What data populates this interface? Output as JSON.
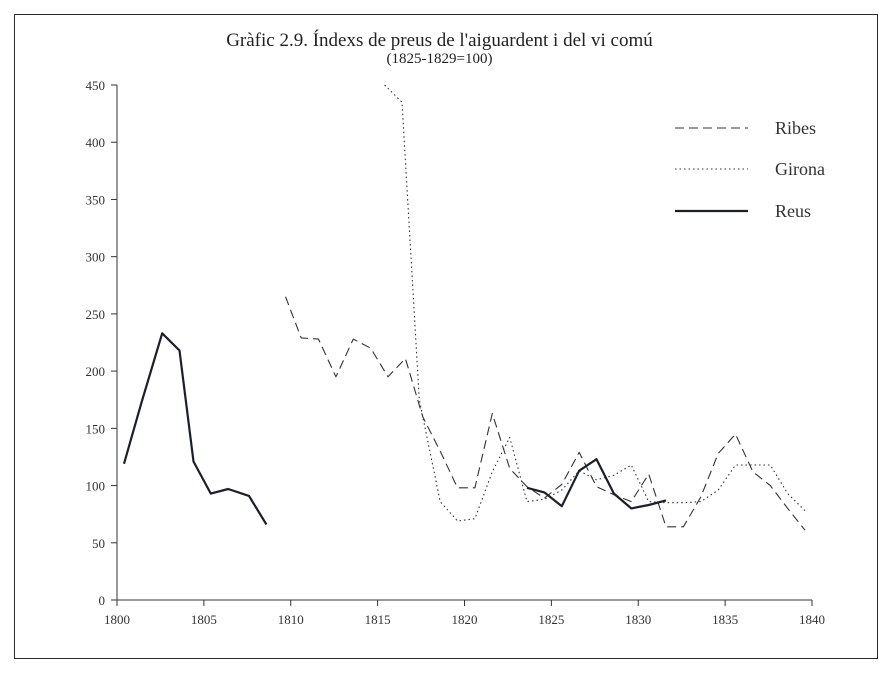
{
  "chart_data": {
    "type": "line",
    "title": "Gràfic 2.9. Índexs de preus de l'aiguardent i del vi comú",
    "subtitle": "(1825-1829=100)",
    "xlabel": "",
    "ylabel": "",
    "xlim": [
      1800,
      1840
    ],
    "ylim": [
      0,
      450
    ],
    "xticks": [
      1800,
      1805,
      1810,
      1815,
      1820,
      1825,
      1830,
      1835,
      1840
    ],
    "yticks": [
      0,
      50,
      100,
      150,
      200,
      250,
      300,
      350,
      400,
      450
    ],
    "legend_position": "top-right",
    "grid": false,
    "series": [
      {
        "name": "Ribes",
        "style": "dashed",
        "color": "#333333",
        "points": [
          [
            1809.7,
            265
          ],
          [
            1810.6,
            229
          ],
          [
            1811.6,
            228
          ],
          [
            1812.6,
            195
          ],
          [
            1813.6,
            228
          ],
          [
            1814.6,
            220
          ],
          [
            1815.6,
            195
          ],
          [
            1816.6,
            211
          ],
          [
            1817.6,
            160
          ],
          [
            1818.6,
            130
          ],
          [
            1819.6,
            98
          ],
          [
            1820.6,
            98
          ],
          [
            1821.6,
            163
          ],
          [
            1822.6,
            115
          ],
          [
            1823.6,
            99
          ],
          [
            1824.6,
            89
          ],
          [
            1825.6,
            101
          ],
          [
            1826.6,
            129
          ],
          [
            1827.6,
            99
          ],
          [
            1828.6,
            92
          ],
          [
            1829.6,
            86
          ],
          [
            1830.6,
            110
          ],
          [
            1831.6,
            64
          ],
          [
            1832.6,
            64
          ],
          [
            1833.6,
            90
          ],
          [
            1834.6,
            128
          ],
          [
            1835.6,
            145
          ],
          [
            1836.6,
            112
          ],
          [
            1837.6,
            100
          ],
          [
            1838.6,
            80
          ],
          [
            1839.6,
            61
          ]
        ]
      },
      {
        "name": "Girona",
        "style": "dotted",
        "color": "#333333",
        "points": [
          [
            1815.4,
            450
          ],
          [
            1816.4,
            435
          ],
          [
            1817.4,
            175
          ],
          [
            1818.6,
            86
          ],
          [
            1819.6,
            69
          ],
          [
            1820.6,
            71
          ],
          [
            1821.6,
            112
          ],
          [
            1822.6,
            142
          ],
          [
            1823.6,
            86
          ],
          [
            1824.6,
            88
          ],
          [
            1825.6,
            96
          ],
          [
            1826.6,
            113
          ],
          [
            1827.6,
            105
          ],
          [
            1828.6,
            109
          ],
          [
            1829.6,
            118
          ],
          [
            1830.6,
            86
          ],
          [
            1831.6,
            85
          ],
          [
            1832.6,
            85
          ],
          [
            1833.6,
            86
          ],
          [
            1834.6,
            96
          ],
          [
            1835.6,
            118
          ],
          [
            1836.6,
            118
          ],
          [
            1837.6,
            118
          ],
          [
            1838.6,
            93
          ],
          [
            1839.6,
            78
          ]
        ]
      },
      {
        "name": "Reus",
        "style": "solid",
        "color": "#1b1e2e",
        "points": [
          [
            1800.4,
            119
          ],
          [
            1801.4,
            172
          ],
          [
            1802.6,
            233
          ],
          [
            1803.6,
            218
          ],
          [
            1804.4,
            121
          ],
          [
            1805.4,
            93
          ],
          [
            1806.4,
            97
          ],
          [
            1807.6,
            91
          ],
          [
            1808.6,
            66
          ],
          null,
          [
            1823.6,
            98
          ],
          [
            1824.6,
            94
          ],
          [
            1825.6,
            82
          ],
          [
            1826.6,
            113
          ],
          [
            1827.6,
            123
          ],
          [
            1828.6,
            93
          ],
          [
            1829.6,
            80
          ],
          [
            1830.6,
            83
          ],
          [
            1831.6,
            87
          ]
        ]
      }
    ]
  }
}
